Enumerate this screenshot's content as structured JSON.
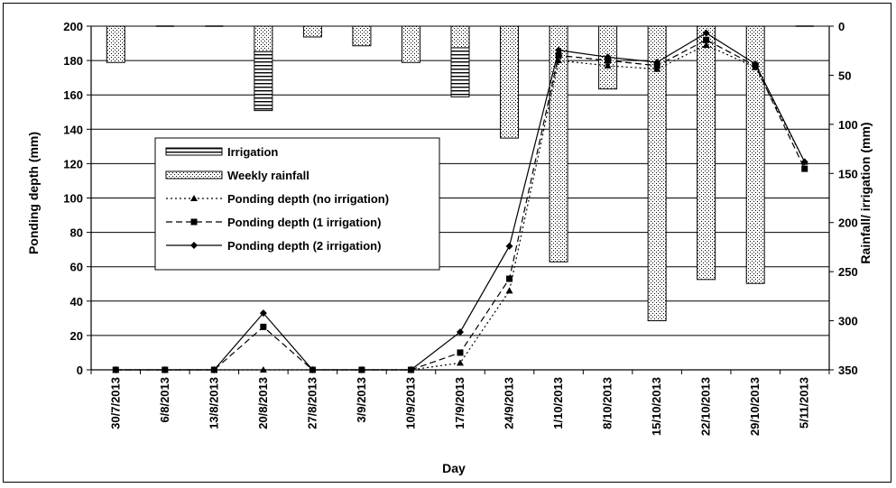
{
  "chart_data": {
    "type": "bar+line",
    "categories": [
      "30/7/2013",
      "6/8/2013",
      "13/8/2013",
      "20/8/2013",
      "27/8/2013",
      "3/9/2013",
      "10/9/2013",
      "17/9/2013",
      "24/9/2013",
      "1/10/2013",
      "8/10/2013",
      "15/10/2013",
      "22/10/2013",
      "29/10/2013",
      "5/11/2013"
    ],
    "xlabel": "Day",
    "ylabel": "Ponding depth (mm)",
    "y2label": "Rainfall/ irrigation (mm)",
    "ylim": [
      0,
      200
    ],
    "y2lim": [
      0,
      350
    ],
    "yticks": [
      0,
      20,
      40,
      60,
      80,
      100,
      120,
      140,
      160,
      180,
      200
    ],
    "y2ticks": [
      0,
      50,
      100,
      150,
      200,
      250,
      300,
      350
    ],
    "y2_inverted": true,
    "grid": true,
    "legend_position": "center-left",
    "bar_series": [
      {
        "name": "Weekly rainfall",
        "pattern": "dots",
        "values": [
          37,
          0,
          0,
          26,
          11,
          20,
          37,
          22,
          114,
          240,
          64,
          300,
          258,
          262,
          0
        ]
      },
      {
        "name": "Irrigation",
        "pattern": "horizontal-lines",
        "values": [
          0,
          0,
          0,
          60,
          0,
          0,
          0,
          50,
          0,
          0,
          0,
          0,
          0,
          0,
          0
        ]
      }
    ],
    "series": [
      {
        "name": "Ponding depth (no irrigation)",
        "style": "dotted",
        "marker": "triangle",
        "values": [
          0,
          0,
          0,
          0,
          0,
          0,
          0,
          4,
          46,
          180,
          177,
          175,
          189,
          176,
          121
        ]
      },
      {
        "name": "Ponding depth (1 irrigation)",
        "style": "dashed",
        "marker": "square",
        "values": [
          0,
          0,
          0,
          25,
          0,
          0,
          0,
          10,
          53,
          183,
          180,
          177,
          192,
          177,
          117
        ]
      },
      {
        "name": "Ponding depth (2 irrigation)",
        "style": "solid",
        "marker": "diamond",
        "values": [
          0,
          0,
          0,
          33,
          0,
          0,
          0,
          22,
          72,
          186,
          182,
          179,
          196,
          178,
          121
        ]
      }
    ]
  }
}
